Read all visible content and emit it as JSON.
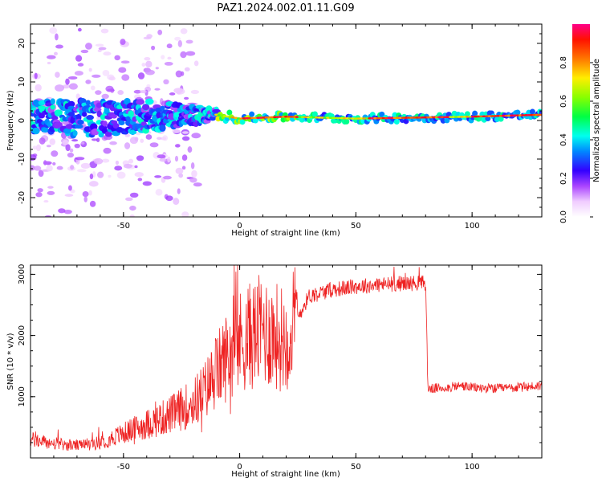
{
  "title": "PAZ1.2024.002.01.11.G09",
  "chart_data": [
    {
      "type": "heatmap",
      "xlabel": "Height of straight line (km)",
      "ylabel": "Frequency (Hz)",
      "xlim": [
        -90,
        130
      ],
      "ylim": [
        -25,
        25
      ],
      "xticks": [
        -50,
        0,
        50,
        100
      ],
      "yticks": [
        -20,
        -10,
        0,
        10,
        20
      ],
      "colorbar": {
        "label": "Normalized spectral amplitude",
        "range": [
          0,
          1
        ],
        "ticks": [
          "0.0",
          "0.2",
          "0.4",
          "0.6",
          "0.8"
        ]
      },
      "ridge": {
        "description_points_x": [
          -90,
          -60,
          -40,
          -20,
          -10,
          0,
          20,
          50,
          80,
          100,
          130
        ],
        "freq_hz": [
          1.0,
          0.5,
          1.0,
          1.5,
          1.5,
          0.5,
          1.0,
          0.5,
          0.8,
          1.0,
          1.5
        ],
        "spread_hz": [
          4.5,
          4.5,
          4.0,
          2.5,
          1.5,
          1.0,
          1.0,
          1.0,
          1.0,
          1.0,
          1.0
        ]
      }
    },
    {
      "type": "line",
      "xlabel": "Height of straight line (km)",
      "ylabel": "SNR (10 * v/v)",
      "xlim": [
        -90,
        130
      ],
      "ylim": [
        0,
        3150
      ],
      "xticks": [
        -50,
        0,
        50,
        100
      ],
      "yticks": [
        1000,
        2000,
        3000
      ],
      "color": "#ee2222",
      "series": [
        {
          "x": [
            -90,
            -80,
            -70,
            -60,
            -50,
            -40,
            -30,
            -20,
            -15,
            -10,
            -5,
            0,
            5,
            10,
            15,
            20,
            25,
            30,
            40,
            50,
            60,
            70,
            80,
            81,
            82,
            90,
            95,
            100,
            110,
            120,
            130
          ],
          "y": [
            300,
            230,
            200,
            250,
            400,
            550,
            700,
            900,
            1100,
            1400,
            1700,
            1900,
            2000,
            2100,
            2000,
            1950,
            2300,
            2650,
            2750,
            2800,
            2830,
            2850,
            2860,
            1150,
            1130,
            1150,
            1180,
            1150,
            1130,
            1150,
            1180
          ]
        }
      ]
    }
  ]
}
